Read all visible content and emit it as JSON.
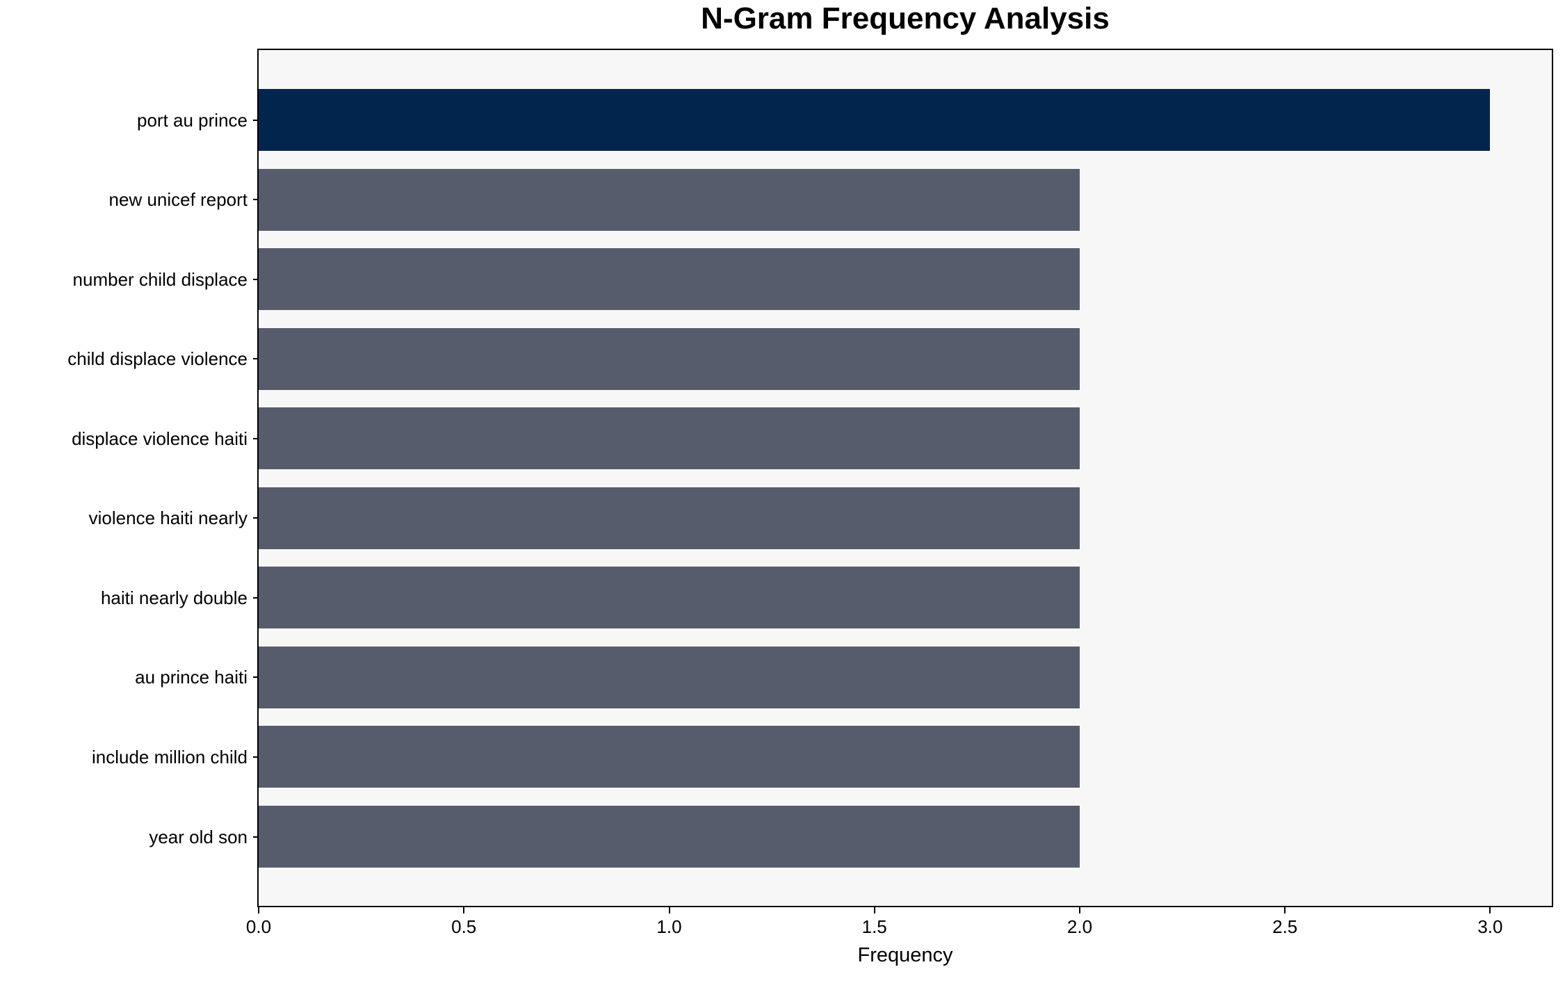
{
  "chart_data": {
    "type": "bar",
    "orientation": "horizontal",
    "title": "N-Gram Frequency Analysis",
    "xlabel": "Frequency",
    "ylabel": "",
    "categories": [
      "port au prince",
      "new unicef report",
      "number child displace",
      "child displace violence",
      "displace violence haiti",
      "violence haiti nearly",
      "haiti nearly double",
      "au prince haiti",
      "include million child",
      "year old son"
    ],
    "values": [
      3,
      2,
      2,
      2,
      2,
      2,
      2,
      2,
      2,
      2
    ],
    "xlim": [
      0,
      3.15
    ],
    "xticks": [
      0,
      0.5,
      1,
      1.5,
      2,
      2.5,
      3
    ],
    "xtick_labels": [
      "0.0",
      "0.5",
      "1.0",
      "1.5",
      "2.0",
      "2.5",
      "3.0"
    ],
    "grid": false,
    "legend": null,
    "highlight_index": 0,
    "colors": {
      "highlight_bar": "#02254e",
      "default_bar": "#565c6c",
      "plot_background": "#f7f7f7",
      "figure_background": "#ffffff",
      "spine": "#000000",
      "text": "#000000"
    }
  }
}
